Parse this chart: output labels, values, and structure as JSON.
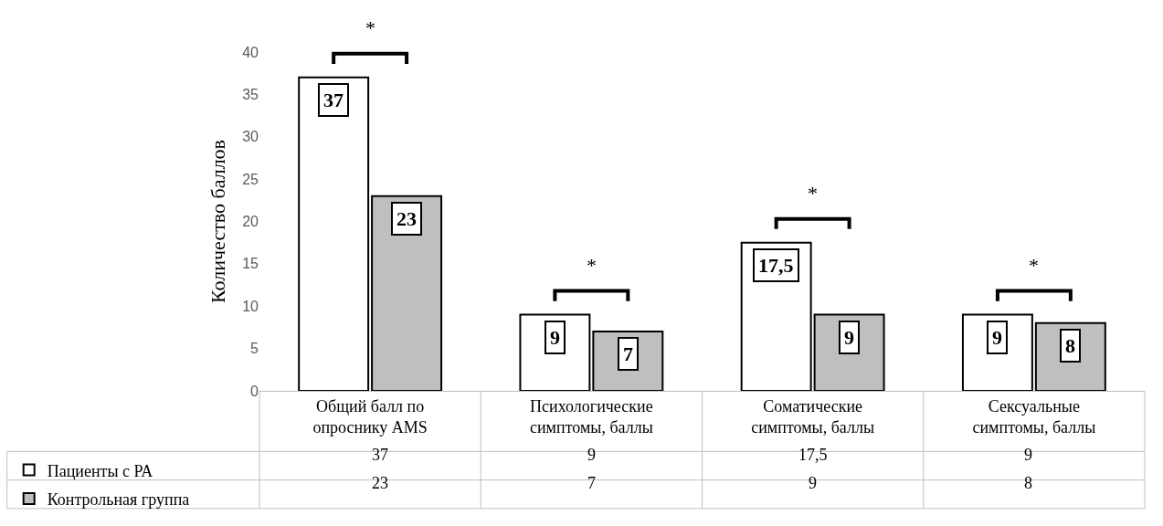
{
  "chart_data": {
    "type": "bar",
    "ylabel": "Количество баллов",
    "categories": [
      "Общий балл по опроснику AMS",
      "Психологические симптомы, баллы",
      "Соматические симптомы, баллы",
      "Сексуальные симптомы, баллы"
    ],
    "series": [
      {
        "name": "Пациенты с РА",
        "color": "#ffffff",
        "values": [
          37,
          9,
          17.5,
          9
        ],
        "value_labels": [
          "37",
          "9",
          "17,5",
          "9"
        ]
      },
      {
        "name": "Контрольная группа",
        "color": "#bfbfbf",
        "values": [
          23,
          7,
          9,
          8
        ],
        "value_labels": [
          "23",
          "7",
          "9",
          "8"
        ]
      }
    ],
    "ylim": [
      0,
      40
    ],
    "yticks": [
      0,
      5,
      10,
      15,
      20,
      25,
      30,
      35,
      40
    ],
    "grid": false,
    "legend": "bottom left",
    "annotations": [
      "*",
      "*",
      "*",
      "*"
    ]
  }
}
